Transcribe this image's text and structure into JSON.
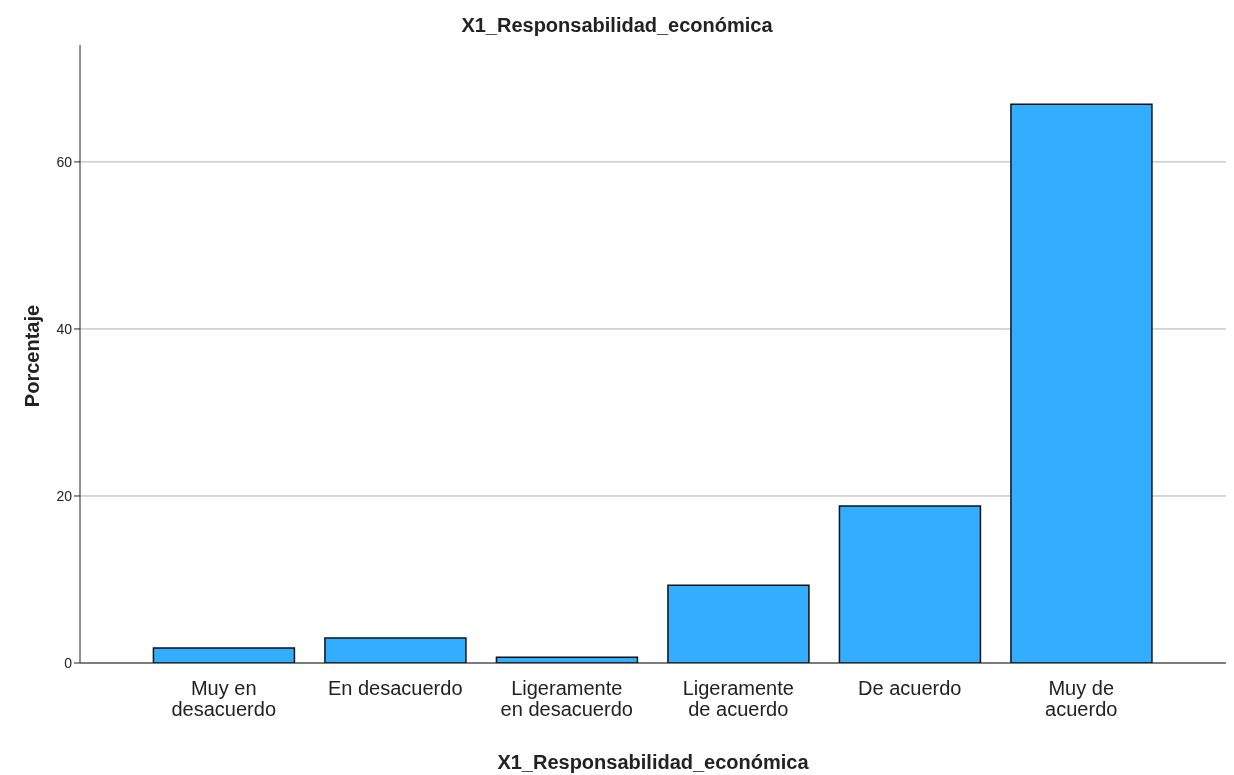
{
  "chart_data": {
    "type": "bar",
    "title": "X1_Responsabilidad_económica",
    "xlabel": "X1_Responsabilidad_económica",
    "ylabel": "Porcentaje",
    "categories": [
      "Muy en desacuerdo",
      "En desacuerdo",
      "Ligeramente en desacuerdo",
      "Ligeramente de acuerdo",
      "De acuerdo",
      "Muy de acuerdo"
    ],
    "values": [
      1.8,
      3.0,
      0.7,
      9.3,
      18.8,
      66.9
    ],
    "color": "#33adff",
    "ylim": [
      0,
      74
    ],
    "yticks": [
      0,
      20,
      40,
      60
    ],
    "grid": "y",
    "legend": false
  }
}
